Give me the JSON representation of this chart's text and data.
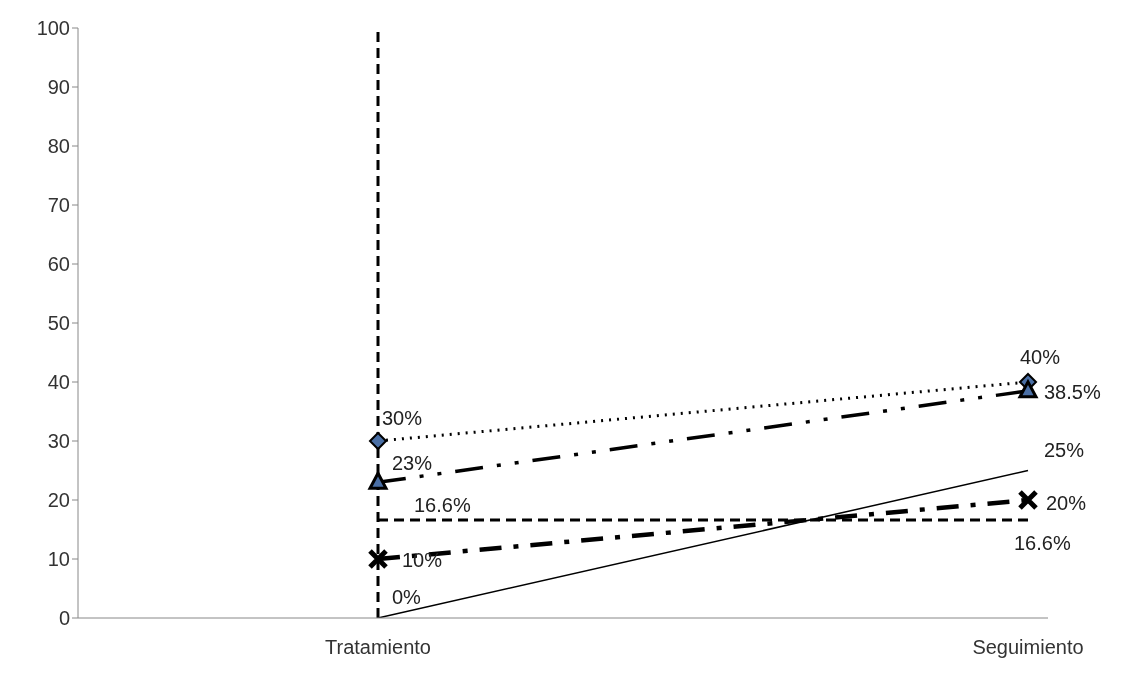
{
  "chart_data": {
    "type": "line",
    "categories": [
      "Tratamiento",
      "Seguimiento"
    ],
    "ylim": [
      0,
      100
    ],
    "yticks": [
      0,
      10,
      20,
      30,
      40,
      50,
      60,
      70,
      80,
      90,
      100
    ],
    "grid": false,
    "legend": false,
    "ref_lines": [
      {
        "axis": "x",
        "value": "Tratamiento",
        "color": "#000000",
        "line_style": "dashed"
      }
    ],
    "series": [
      {
        "color": "#000000",
        "values": [
          30,
          40
        ],
        "value_labels": [
          "30%",
          "40%"
        ],
        "line_style": "dotted",
        "marker": "diamond"
      },
      {
        "color": "#000000",
        "values": [
          23,
          38.5
        ],
        "value_labels": [
          "23%",
          "38.5%"
        ],
        "line_style": "dashdotdot",
        "marker": "triangle"
      },
      {
        "color": "#000000",
        "values": [
          16.6,
          16.6
        ],
        "value_labels": [
          "16.6%",
          "16.6%"
        ],
        "line_style": "dashed",
        "marker": "none"
      },
      {
        "color": "#000000",
        "values": [
          10,
          20
        ],
        "value_labels": [
          "10%",
          "20%"
        ],
        "line_style": "dashdot",
        "marker": "cross"
      },
      {
        "color": "#000000",
        "values": [
          0,
          25
        ],
        "value_labels": [
          "0%",
          "25%"
        ],
        "line_style": "solid",
        "marker": "none"
      }
    ]
  }
}
